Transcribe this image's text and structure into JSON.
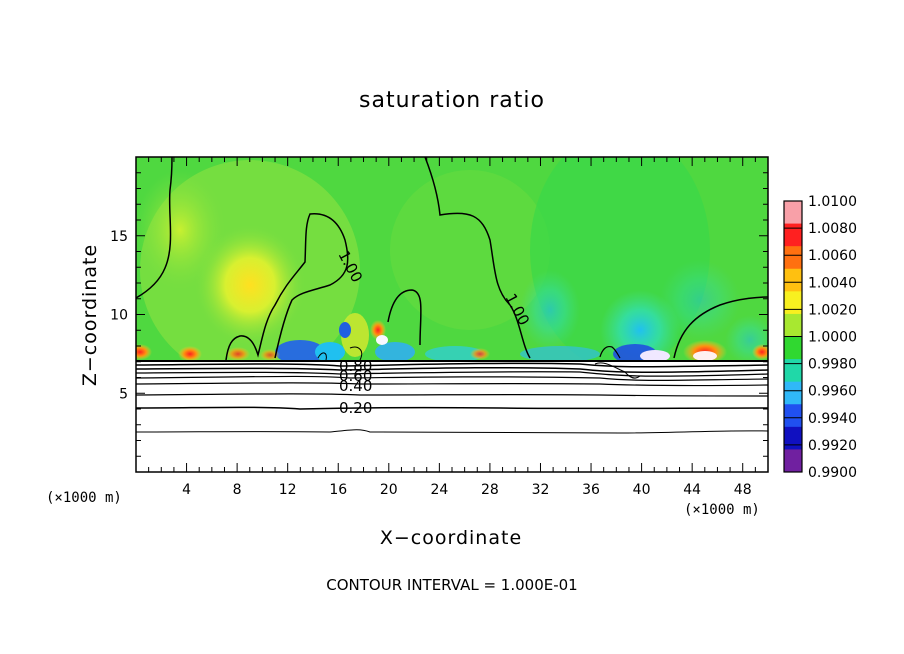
{
  "chart_data": {
    "type": "heatmap",
    "title": "saturation ratio",
    "xlabel": "X−coordinate",
    "ylabel": "Z−coordinate",
    "x_unit": "(×1000 m)",
    "x_unit_right": "(×1000 m)",
    "xlim": [
      0,
      50
    ],
    "ylim": [
      0,
      20
    ],
    "x_ticks": [
      "4",
      "8",
      "12",
      "16",
      "20",
      "24",
      "28",
      "32",
      "36",
      "40",
      "44",
      "48"
    ],
    "y_ticks": [
      "5",
      "10",
      "15"
    ],
    "colorbar": {
      "labels": [
        "1.0100",
        "1.0080",
        "1.0060",
        "1.0040",
        "1.0020",
        "1.0000",
        "0.9980",
        "0.9960",
        "0.9940",
        "0.9920",
        "0.9900"
      ],
      "colors": [
        "#f8a0a8",
        "#ff2020",
        "#ff7010",
        "#ffc010",
        "#f8f020",
        "#a8e830",
        "#30d830",
        "#20d8a8",
        "#30b8f8",
        "#2050f0",
        "#1010c0",
        "#7020a0"
      ]
    },
    "contour_labels": [
      {
        "text": "1.00",
        "x": 16.5,
        "z": 13.8
      },
      {
        "text": "1.00",
        "x": 30.0,
        "z": 10.6
      },
      {
        "text": "0.80",
        "x": 17.8,
        "z": 6.7
      },
      {
        "text": "0.60",
        "x": 17.8,
        "z": 6.1
      },
      {
        "text": "0.40",
        "x": 17.5,
        "z": 5.5
      },
      {
        "text": "0.20",
        "x": 17.5,
        "z": 4.1
      }
    ],
    "contour_interval": "CONTOUR INTERVAL = 1.000E-01"
  }
}
